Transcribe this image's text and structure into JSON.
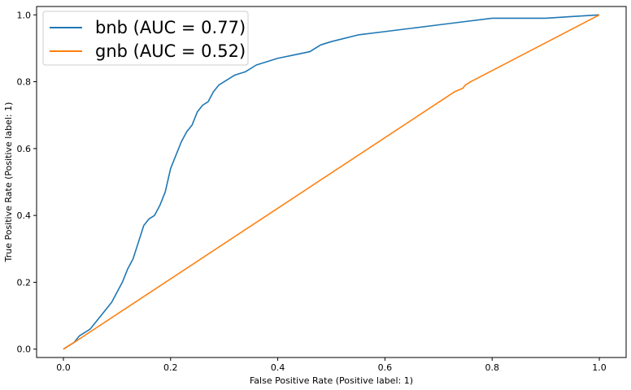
{
  "chart_data": {
    "type": "line",
    "title": "",
    "xlabel": "False Positive Rate (Positive label: 1)",
    "ylabel": "True Positive Rate (Positive label: 1)",
    "xlim": [
      -0.05,
      1.05
    ],
    "ylim": [
      -0.025,
      1.025
    ],
    "xticks": [
      "0.0",
      "0.2",
      "0.4",
      "0.6",
      "0.8",
      "1.0"
    ],
    "yticks": [
      "0.0",
      "0.2",
      "0.4",
      "0.6",
      "0.8",
      "1.0"
    ],
    "grid": false,
    "legend_position": "top-left",
    "series": [
      {
        "name": "bnb (AUC = 0.77)",
        "color": "#1f77b4",
        "x": [
          0.0,
          0.01,
          0.02,
          0.03,
          0.04,
          0.05,
          0.06,
          0.07,
          0.08,
          0.09,
          0.1,
          0.11,
          0.12,
          0.13,
          0.14,
          0.15,
          0.16,
          0.17,
          0.18,
          0.19,
          0.2,
          0.21,
          0.22,
          0.23,
          0.24,
          0.25,
          0.26,
          0.27,
          0.28,
          0.29,
          0.3,
          0.32,
          0.34,
          0.36,
          0.38,
          0.4,
          0.43,
          0.46,
          0.48,
          0.5,
          0.55,
          0.6,
          0.65,
          0.7,
          0.75,
          0.8,
          0.85,
          0.9,
          0.95,
          1.0
        ],
        "y": [
          0.0,
          0.01,
          0.02,
          0.04,
          0.05,
          0.06,
          0.08,
          0.1,
          0.12,
          0.14,
          0.17,
          0.2,
          0.24,
          0.27,
          0.32,
          0.37,
          0.39,
          0.4,
          0.43,
          0.47,
          0.54,
          0.58,
          0.62,
          0.65,
          0.67,
          0.71,
          0.73,
          0.74,
          0.77,
          0.79,
          0.8,
          0.82,
          0.83,
          0.85,
          0.86,
          0.87,
          0.88,
          0.89,
          0.91,
          0.92,
          0.94,
          0.95,
          0.96,
          0.97,
          0.98,
          0.99,
          0.99,
          0.99,
          0.995,
          1.0
        ]
      },
      {
        "name": "gnb (AUC = 0.52)",
        "color": "#ff7f0e",
        "x": [
          0.0,
          0.02,
          0.73,
          0.745,
          0.75,
          0.76,
          1.0
        ],
        "y": [
          0.0,
          0.02,
          0.77,
          0.78,
          0.79,
          0.8,
          1.0
        ]
      }
    ]
  }
}
